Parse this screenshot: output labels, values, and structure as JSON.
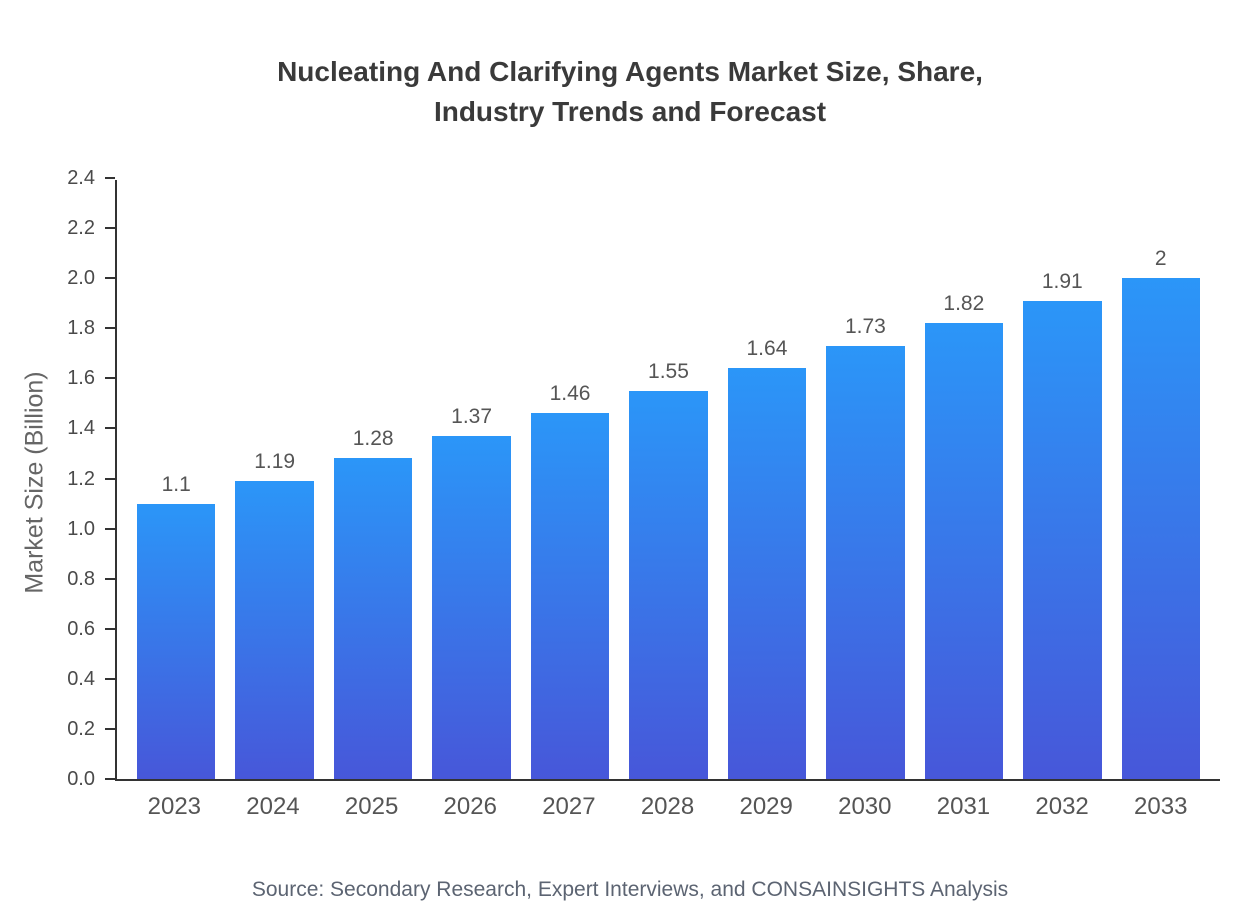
{
  "title": {
    "line1": "Nucleating And Clarifying Agents Market Size, Share,",
    "line2": "Industry Trends and Forecast"
  },
  "chart_data": {
    "type": "bar",
    "title": "Nucleating And Clarifying Agents Market Size, Share, Industry Trends and Forecast",
    "categories": [
      "2023",
      "2024",
      "2025",
      "2026",
      "2027",
      "2028",
      "2029",
      "2030",
      "2031",
      "2032",
      "2033"
    ],
    "values": [
      1.1,
      1.19,
      1.28,
      1.37,
      1.46,
      1.55,
      1.64,
      1.73,
      1.82,
      1.91,
      2
    ],
    "xlabel": "",
    "ylabel": "Market Size (Billion)",
    "ylim": [
      0,
      2.4
    ],
    "ytick_step": 0.2,
    "grid": false,
    "legend": false,
    "bar_gradient_top": "#2b96f8",
    "bar_gradient_bottom": "#4757d9",
    "axis_color": "#333333"
  },
  "source": "Source: Secondary Research, Expert Interviews, and CONSAINSIGHTS Analysis"
}
